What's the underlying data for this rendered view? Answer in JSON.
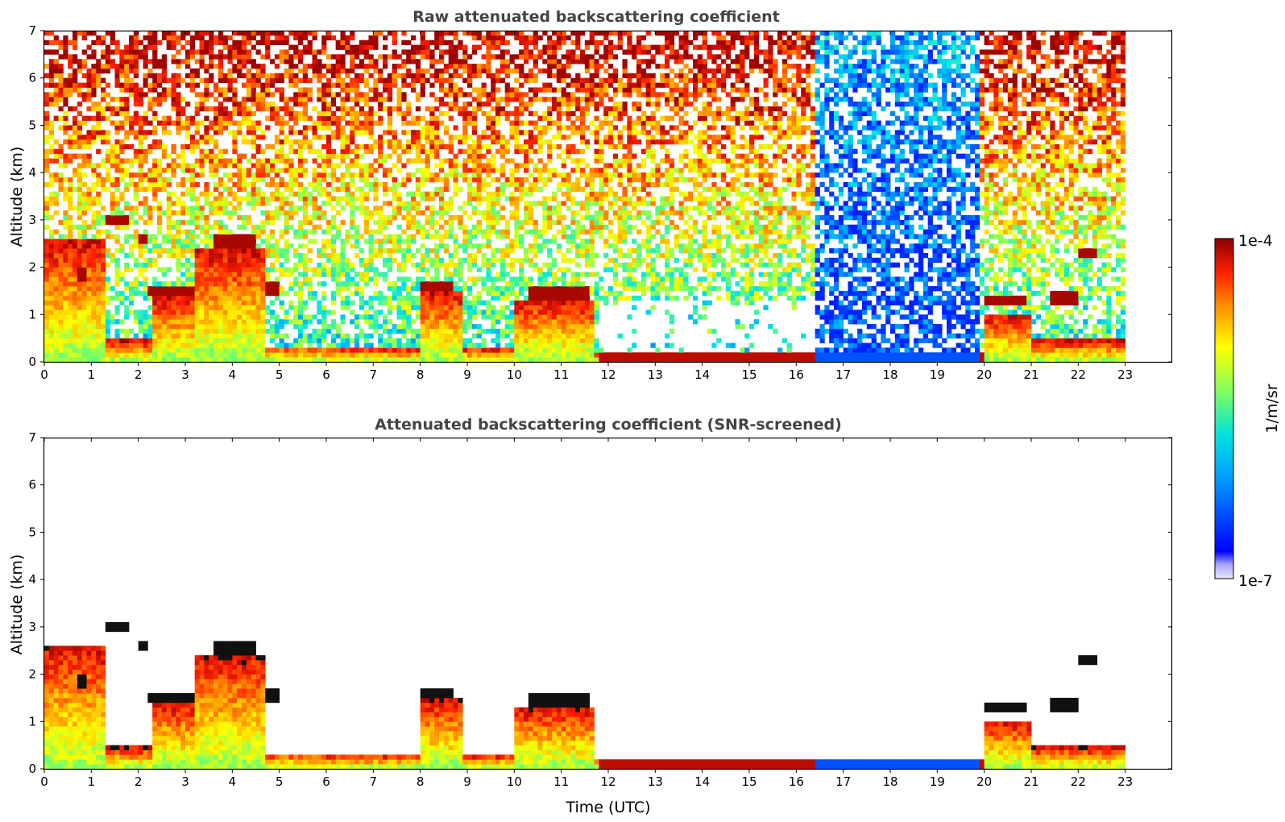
{
  "chart_data": [
    {
      "type": "heatmap",
      "title": "Raw attenuated backscattering coefficient",
      "xlabel": "",
      "ylabel": "Altitude (km)",
      "xlim": [
        0,
        24
      ],
      "ylim": [
        0,
        7
      ],
      "x_ticks": [
        "0",
        "1",
        "2",
        "3",
        "4",
        "5",
        "6",
        "7",
        "8",
        "9",
        "10",
        "11",
        "12",
        "13",
        "14",
        "15",
        "16",
        "17",
        "18",
        "19",
        "20",
        "21",
        "22",
        "23"
      ],
      "y_ticks": [
        "0",
        "1",
        "2",
        "3",
        "4",
        "5",
        "6",
        "7"
      ],
      "data_end_time": 23,
      "cloud_layers": [
        {
          "t0": 0.7,
          "t1": 0.9,
          "alt": 1.85
        },
        {
          "t0": 1.3,
          "t1": 1.8,
          "alt": 3.0
        },
        {
          "t0": 2.0,
          "t1": 2.2,
          "alt": 2.6
        },
        {
          "t0": 2.25,
          "t1": 3.2,
          "alt": 1.5
        },
        {
          "t0": 3.6,
          "t1": 4.5,
          "alt": 2.55
        },
        {
          "t0": 4.7,
          "t1": 5.0,
          "alt": 1.55
        },
        {
          "t0": 8.0,
          "t1": 8.7,
          "alt": 1.6
        },
        {
          "t0": 10.3,
          "t1": 11.6,
          "alt": 1.45
        },
        {
          "t0": 20.0,
          "t1": 20.9,
          "alt": 1.3
        },
        {
          "t0": 21.4,
          "t1": 22.0,
          "alt": 1.35
        },
        {
          "t0": 22.0,
          "t1": 22.4,
          "alt": 2.3
        }
      ]
    },
    {
      "type": "heatmap",
      "title": "Attenuated backscattering coefficient (SNR-screened)",
      "xlabel": "Time (UTC)",
      "ylabel": "Altitude (km)",
      "xlim": [
        0,
        24
      ],
      "ylim": [
        0,
        7
      ],
      "x_ticks": [
        "0",
        "1",
        "2",
        "3",
        "4",
        "5",
        "6",
        "7",
        "8",
        "9",
        "10",
        "11",
        "12",
        "13",
        "14",
        "15",
        "16",
        "17",
        "18",
        "19",
        "20",
        "21",
        "22",
        "23"
      ],
      "y_ticks": [
        "0",
        "1",
        "2",
        "3",
        "4",
        "5",
        "6",
        "7"
      ],
      "data_end_time": 23
    }
  ],
  "colorbar": {
    "label": "1/m/sr",
    "max_label": "1e-4",
    "min_label": "1e-7",
    "scale": "log",
    "colormap": "jet"
  }
}
